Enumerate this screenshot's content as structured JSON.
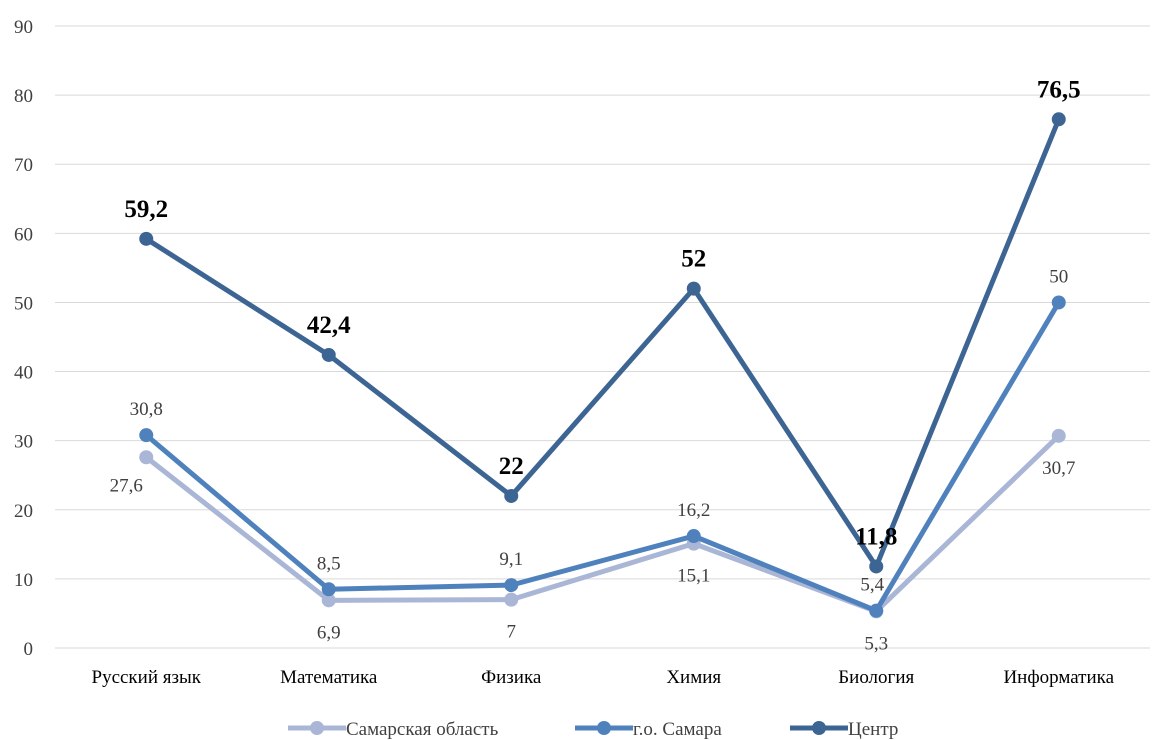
{
  "chart_data": {
    "type": "line",
    "title": "",
    "xlabel": "",
    "ylabel": "",
    "categories": [
      "Русский язык",
      "Математика",
      "Физика",
      "Химия",
      "Биология",
      "Информатика"
    ],
    "ylim": [
      0,
      90
    ],
    "yticks": [
      0,
      10,
      20,
      30,
      40,
      50,
      60,
      70,
      80,
      90
    ],
    "grid": true,
    "legend_position": "bottom",
    "series": [
      {
        "name": "Самарская область",
        "color": "#aab6d6",
        "values": [
          27.6,
          6.9,
          7,
          15.1,
          5.3,
          30.7
        ],
        "labels": [
          "27,6",
          "6,9",
          "7",
          "15,1",
          "5,3",
          "30,7"
        ]
      },
      {
        "name": "г.о. Самара",
        "color": "#4f81bd",
        "values": [
          30.8,
          8.5,
          9.1,
          16.2,
          5.4,
          50
        ],
        "labels": [
          "30,8",
          "8,5",
          "9,1",
          "16,2",
          "5,4",
          "50"
        ]
      },
      {
        "name": "Центр",
        "color": "#3d6594",
        "values": [
          59.2,
          42.4,
          22,
          52,
          11.8,
          76.5
        ],
        "labels": [
          "59,2",
          "42,4",
          "22",
          "52",
          "11,8",
          "76,5"
        ]
      }
    ]
  }
}
